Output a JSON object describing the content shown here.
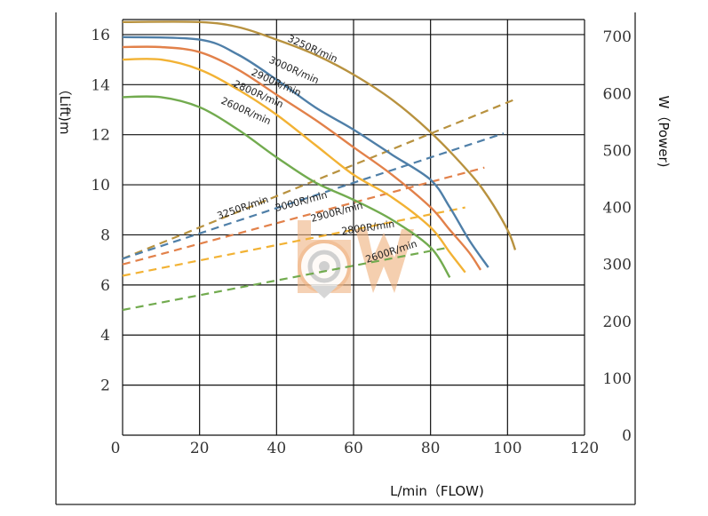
{
  "chart_data": {
    "type": "line",
    "ylabel": "（Lift)m",
    "xlabel": "L/min（FLOW)",
    "y2label": "W（Power)",
    "xlim": [
      0,
      120
    ],
    "ylim": [
      0,
      16.6
    ],
    "y2lim": [
      0,
      730
    ],
    "xticks": [
      "0",
      "20",
      "40",
      "60",
      "80",
      "100",
      "120"
    ],
    "yticks": [
      "2",
      "4",
      "6",
      "8",
      "10",
      "12",
      "14",
      "16"
    ],
    "y2ticks": [
      "0",
      "100",
      "200",
      "300",
      "400",
      "500",
      "600",
      "700"
    ],
    "grid": true,
    "lift_series": [
      {
        "name": "3250R/min",
        "color": "#b8923f",
        "x": [
          0,
          20,
          30,
          40,
          50,
          60,
          70,
          80,
          90,
          95,
          100,
          102
        ],
        "y": [
          16.5,
          16.5,
          16.3,
          15.8,
          15.2,
          14.4,
          13.4,
          12.1,
          10.5,
          9.5,
          8.2,
          7.4
        ]
      },
      {
        "name": "3000R/min",
        "color": "#4f7fa8",
        "x": [
          0,
          20,
          30,
          40,
          50,
          60,
          70,
          80,
          85,
          90,
          95
        ],
        "y": [
          15.9,
          15.8,
          15.2,
          14.2,
          13.1,
          12.2,
          11.2,
          10.2,
          9.1,
          7.8,
          6.7
        ]
      },
      {
        "name": "2900R/min",
        "color": "#e2814a",
        "x": [
          0,
          10,
          20,
          30,
          40,
          50,
          60,
          70,
          80,
          85,
          90,
          93
        ],
        "y": [
          15.5,
          15.5,
          15.3,
          14.6,
          13.6,
          12.6,
          11.5,
          10.4,
          9.1,
          8.2,
          7.3,
          6.6
        ]
      },
      {
        "name": "2800R/min",
        "color": "#f2b234",
        "x": [
          0,
          10,
          20,
          30,
          40,
          50,
          60,
          70,
          80,
          85,
          89
        ],
        "y": [
          15.0,
          15.0,
          14.6,
          13.8,
          12.8,
          11.6,
          10.4,
          9.5,
          8.3,
          7.3,
          6.5
        ]
      },
      {
        "name": "2600R/min",
        "color": "#72ab4f",
        "x": [
          0,
          10,
          20,
          30,
          40,
          50,
          60,
          70,
          80,
          85
        ],
        "y": [
          13.5,
          13.5,
          13.1,
          12.2,
          11.1,
          10.1,
          9.4,
          8.6,
          7.5,
          6.3
        ]
      }
    ],
    "power_series": [
      {
        "name": "3250R/min",
        "color": "#b8923f",
        "x": [
          0,
          102
        ],
        "y": [
          310,
          590
        ]
      },
      {
        "name": "3000R/min",
        "color": "#4f7fa8",
        "x": [
          0,
          99
        ],
        "y": [
          310,
          530
        ]
      },
      {
        "name": "2900R/min",
        "color": "#e2814a",
        "x": [
          0,
          94
        ],
        "y": [
          300,
          470
        ]
      },
      {
        "name": "2800R/min",
        "color": "#f2b234",
        "x": [
          0,
          89
        ],
        "y": [
          280,
          400
        ]
      },
      {
        "name": "2600R/min",
        "color": "#72ab4f",
        "x": [
          0,
          85
        ],
        "y": [
          220,
          330
        ]
      }
    ]
  }
}
